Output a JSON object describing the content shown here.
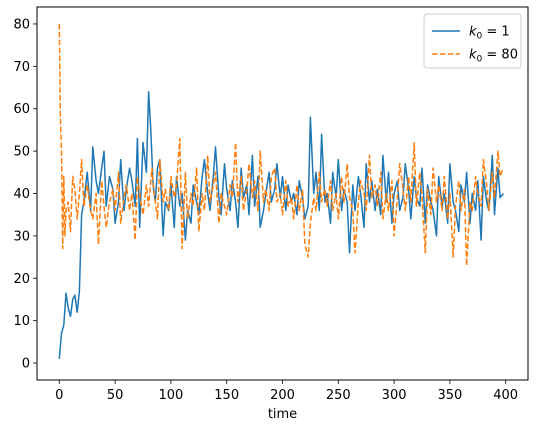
{
  "chart_data": {
    "type": "line",
    "title": "",
    "xlabel": "time",
    "ylabel": "",
    "xlim": [
      -20,
      420
    ],
    "ylim": [
      -4,
      84
    ],
    "xticks": [
      0,
      50,
      100,
      150,
      200,
      250,
      300,
      350,
      400
    ],
    "yticks": [
      0,
      10,
      20,
      30,
      40,
      50,
      60,
      70,
      80
    ],
    "legend_position": "top-right",
    "grid": false,
    "series": [
      {
        "legend": {
          "base": "k",
          "sub": "0",
          "rest": " = 1"
        },
        "color": "#1f77b4",
        "style": "solid",
        "x": [
          0,
          2,
          4,
          6,
          8,
          10,
          12,
          14,
          16,
          18,
          20,
          22,
          25,
          28,
          30,
          33,
          35,
          38,
          40,
          42,
          45,
          48,
          50,
          53,
          55,
          58,
          60,
          63,
          65,
          68,
          70,
          72,
          75,
          78,
          80,
          82,
          84,
          86,
          88,
          90,
          93,
          95,
          98,
          100,
          103,
          105,
          108,
          110,
          113,
          115,
          118,
          120,
          123,
          125,
          128,
          130,
          133,
          135,
          138,
          140,
          143,
          145,
          148,
          150,
          153,
          155,
          158,
          160,
          163,
          165,
          168,
          170,
          173,
          175,
          178,
          180,
          183,
          185,
          188,
          190,
          193,
          195,
          198,
          200,
          203,
          205,
          208,
          210,
          213,
          215,
          218,
          220,
          223,
          225,
          228,
          230,
          233,
          235,
          238,
          240,
          243,
          245,
          248,
          250,
          253,
          255,
          258,
          260,
          263,
          265,
          268,
          270,
          273,
          275,
          278,
          280,
          283,
          285,
          288,
          290,
          293,
          295,
          298,
          300,
          303,
          305,
          308,
          310,
          313,
          315,
          318,
          320,
          323,
          325,
          328,
          330,
          333,
          335,
          338,
          340,
          343,
          345,
          348,
          350,
          353,
          355,
          358,
          360,
          363,
          365,
          368,
          370,
          373,
          375,
          378,
          380,
          383,
          385,
          388,
          390,
          393,
          395,
          398
        ],
        "y": [
          1,
          7,
          9,
          16.5,
          13,
          11,
          15,
          16,
          12,
          17,
          35,
          38,
          45,
          36,
          51,
          43,
          40,
          46,
          50,
          37,
          44,
          41,
          33,
          38,
          48,
          36,
          41,
          46,
          43,
          37,
          53,
          32,
          52,
          45,
          64,
          55,
          42,
          38,
          46,
          48,
          30,
          38,
          36,
          42,
          32,
          44,
          37,
          40,
          29,
          36,
          33,
          42,
          38,
          35,
          44,
          48,
          40,
          36,
          44,
          51,
          39,
          35,
          47,
          41,
          36,
          43,
          38,
          32,
          46,
          39,
          42,
          35,
          49,
          37,
          44,
          32,
          36,
          40,
          45,
          38,
          41,
          47,
          39,
          44,
          36,
          42,
          38,
          40,
          35,
          43,
          39,
          34,
          37,
          58,
          40,
          45,
          36,
          54,
          38,
          40,
          33,
          45,
          39,
          48,
          36,
          41,
          38,
          26,
          42,
          36,
          44,
          40,
          32,
          47,
          38,
          43,
          36,
          41,
          35,
          49,
          38,
          45,
          33,
          40,
          43,
          36,
          39,
          47,
          41,
          34,
          44,
          39,
          37,
          46,
          33,
          42,
          38,
          36,
          30,
          44,
          37,
          40,
          33,
          47,
          38,
          36,
          31,
          42,
          38,
          45,
          33,
          40,
          36,
          43,
          29,
          44,
          38,
          36,
          49,
          35,
          46,
          39,
          40
        ]
      },
      {
        "legend": {
          "base": "k",
          "sub": "0",
          "rest": " = 80"
        },
        "color": "#ff7f0e",
        "style": "dashed",
        "x": [
          0,
          1,
          2,
          3,
          4,
          5,
          6,
          8,
          10,
          12,
          14,
          16,
          18,
          20,
          22,
          25,
          28,
          30,
          33,
          35,
          38,
          40,
          42,
          45,
          48,
          50,
          53,
          55,
          58,
          60,
          63,
          65,
          68,
          70,
          73,
          75,
          78,
          80,
          83,
          85,
          88,
          90,
          93,
          95,
          98,
          100,
          103,
          105,
          108,
          110,
          113,
          115,
          118,
          120,
          123,
          125,
          128,
          130,
          133,
          135,
          138,
          140,
          143,
          145,
          148,
          150,
          153,
          155,
          158,
          160,
          163,
          165,
          168,
          170,
          173,
          175,
          178,
          180,
          183,
          185,
          188,
          190,
          193,
          195,
          198,
          200,
          203,
          205,
          208,
          210,
          213,
          215,
          218,
          220,
          223,
          225,
          228,
          230,
          233,
          235,
          238,
          240,
          243,
          245,
          248,
          250,
          253,
          255,
          258,
          260,
          263,
          265,
          268,
          270,
          273,
          275,
          278,
          280,
          283,
          285,
          288,
          290,
          293,
          295,
          298,
          300,
          303,
          305,
          308,
          310,
          313,
          315,
          318,
          320,
          323,
          325,
          328,
          330,
          333,
          335,
          338,
          340,
          343,
          345,
          348,
          350,
          353,
          355,
          358,
          360,
          363,
          365,
          368,
          370,
          373,
          375,
          378,
          380,
          383,
          385,
          388,
          390,
          393,
          395,
          398
        ],
        "y": [
          80,
          58,
          50,
          27,
          44,
          30,
          36,
          38,
          31,
          44,
          41,
          34,
          40,
          48,
          37,
          42,
          36,
          34,
          40,
          28,
          43,
          37,
          32,
          38,
          41,
          36,
          45,
          33,
          39,
          42,
          36,
          40,
          29,
          44,
          38,
          35,
          42,
          37,
          46,
          40,
          34,
          48,
          38,
          41,
          36,
          44,
          39,
          42,
          53,
          27,
          45,
          34,
          40,
          37,
          46,
          31,
          40,
          36,
          49,
          38,
          42,
          45,
          33,
          40,
          37,
          35,
          42,
          39,
          52,
          38,
          44,
          36,
          41,
          47,
          39,
          43,
          36,
          50,
          38,
          41,
          36,
          44,
          46,
          38,
          40,
          35,
          43,
          37,
          39,
          34,
          42,
          36,
          41,
          28,
          25,
          33,
          39,
          36,
          45,
          38,
          41,
          37,
          43,
          36,
          40,
          34,
          44,
          38,
          47,
          39,
          36,
          26,
          38,
          43,
          40,
          36,
          49,
          39,
          42,
          37,
          45,
          34,
          40,
          36,
          43,
          30,
          39,
          47,
          41,
          36,
          44,
          38,
          52,
          37,
          45,
          39,
          26,
          41,
          35,
          46,
          38,
          42,
          36,
          44,
          34,
          40,
          25,
          37,
          43,
          36,
          41,
          23,
          38,
          36,
          44,
          40,
          37,
          48,
          42,
          36,
          45,
          39,
          50,
          44,
          46
        ]
      }
    ]
  }
}
